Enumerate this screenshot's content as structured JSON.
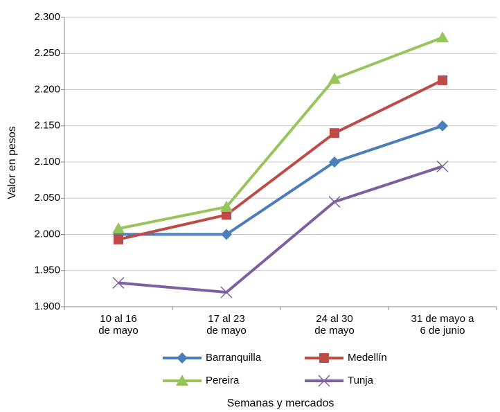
{
  "chart_data": {
    "type": "line",
    "x_label": "Semanas y mercados",
    "y_label": "Valor en pesos",
    "categories": [
      "10 al 16\nde mayo",
      "17 al 23\nde mayo",
      "24 al 30\nde mayo",
      "31 de mayo a\n6 de junio"
    ],
    "series": [
      {
        "name": "Barranquilla",
        "color": "#4a7ebb",
        "marker": "diamond",
        "values": [
          2000,
          2000,
          2100,
          2150
        ]
      },
      {
        "name": "Medellín",
        "color": "#be4b48",
        "marker": "square",
        "values": [
          1993,
          2027,
          2140,
          2213
        ]
      },
      {
        "name": "Pereira",
        "color": "#98c45c",
        "marker": "triangle",
        "values": [
          2008,
          2038,
          2215,
          2272
        ]
      },
      {
        "name": "Tunja",
        "color": "#7d60a0",
        "marker": "x",
        "values": [
          1933,
          1920,
          2045,
          2094
        ]
      }
    ],
    "ylim": [
      1900,
      2300
    ],
    "yticks": [
      {
        "value": 1900,
        "label": "1.900"
      },
      {
        "value": 1950,
        "label": "1.950"
      },
      {
        "value": 2000,
        "label": "2.000"
      },
      {
        "value": 2050,
        "label": "2.050"
      },
      {
        "value": 2100,
        "label": "2.100"
      },
      {
        "value": 2150,
        "label": "2.150"
      },
      {
        "value": 2200,
        "label": "2.200"
      },
      {
        "value": 2250,
        "label": "2.250"
      },
      {
        "value": 2300,
        "label": "2.300"
      }
    ],
    "grid": true,
    "legend": "bottom"
  }
}
